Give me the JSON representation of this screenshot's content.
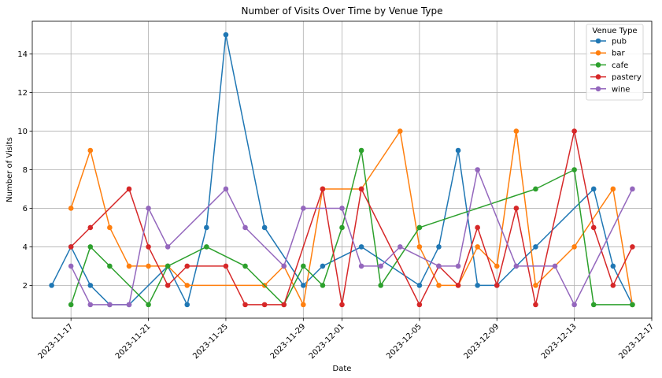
{
  "chart_data": {
    "type": "line",
    "title": "Number of Visits Over Time by Venue Type",
    "xlabel": "Date",
    "ylabel": "Number of Visits",
    "x_axis_type": "date",
    "xlim": [
      "2023-11-15",
      "2023-12-17"
    ],
    "ylim": [
      0.3,
      15.7
    ],
    "x_ticks": [
      "2023-11-17",
      "2023-11-21",
      "2023-11-25",
      "2023-11-29",
      "2023-12-01",
      "2023-12-05",
      "2023-12-09",
      "2023-12-13",
      "2023-12-17"
    ],
    "y_ticks": [
      2,
      4,
      6,
      8,
      10,
      12,
      14
    ],
    "grid": true,
    "legend": {
      "title": "Venue Type",
      "placement": "top-right"
    },
    "series": [
      {
        "name": "pub",
        "color": "#1f77b4",
        "points": [
          [
            "2023-11-16",
            2
          ],
          [
            "2023-11-17",
            4
          ],
          [
            "2023-11-18",
            2
          ],
          [
            "2023-11-19",
            1
          ],
          [
            "2023-11-20",
            1
          ],
          [
            "2023-11-22",
            3
          ],
          [
            "2023-11-23",
            1
          ],
          [
            "2023-11-24",
            5
          ],
          [
            "2023-11-25",
            15
          ],
          [
            "2023-11-27",
            5
          ],
          [
            "2023-11-29",
            2
          ],
          [
            "2023-11-30",
            3
          ],
          [
            "2023-12-02",
            4
          ],
          [
            "2023-12-05",
            2
          ],
          [
            "2023-12-06",
            4
          ],
          [
            "2023-12-07",
            9
          ],
          [
            "2023-12-08",
            2
          ],
          [
            "2023-12-09",
            2
          ],
          [
            "2023-12-11",
            4
          ],
          [
            "2023-12-14",
            7
          ],
          [
            "2023-12-15",
            3
          ],
          [
            "2023-12-16",
            1
          ]
        ]
      },
      {
        "name": "bar",
        "color": "#ff7f0e",
        "points": [
          [
            "2023-11-17",
            6
          ],
          [
            "2023-11-18",
            9
          ],
          [
            "2023-11-19",
            5
          ],
          [
            "2023-11-20",
            3
          ],
          [
            "2023-11-21",
            3
          ],
          [
            "2023-11-22",
            3
          ],
          [
            "2023-11-23",
            2
          ],
          [
            "2023-11-27",
            2
          ],
          [
            "2023-11-28",
            3
          ],
          [
            "2023-11-29",
            1
          ],
          [
            "2023-11-30",
            7
          ],
          [
            "2023-12-02",
            7
          ],
          [
            "2023-12-04",
            10
          ],
          [
            "2023-12-05",
            4
          ],
          [
            "2023-12-06",
            2
          ],
          [
            "2023-12-07",
            2
          ],
          [
            "2023-12-08",
            4
          ],
          [
            "2023-12-09",
            3
          ],
          [
            "2023-12-10",
            10
          ],
          [
            "2023-12-11",
            2
          ],
          [
            "2023-12-13",
            4
          ],
          [
            "2023-12-15",
            7
          ],
          [
            "2023-12-16",
            1
          ]
        ]
      },
      {
        "name": "cafe",
        "color": "#2ca02c",
        "points": [
          [
            "2023-11-17",
            1
          ],
          [
            "2023-11-18",
            4
          ],
          [
            "2023-11-19",
            3
          ],
          [
            "2023-11-21",
            1
          ],
          [
            "2023-11-22",
            3
          ],
          [
            "2023-11-24",
            4
          ],
          [
            "2023-11-26",
            3
          ],
          [
            "2023-11-28",
            1
          ],
          [
            "2023-11-29",
            3
          ],
          [
            "2023-11-30",
            2
          ],
          [
            "2023-12-01",
            5
          ],
          [
            "2023-12-02",
            9
          ],
          [
            "2023-12-03",
            2
          ],
          [
            "2023-12-05",
            5
          ],
          [
            "2023-12-11",
            7
          ],
          [
            "2023-12-13",
            8
          ],
          [
            "2023-12-14",
            1
          ],
          [
            "2023-12-16",
            1
          ]
        ]
      },
      {
        "name": "pastery",
        "color": "#d62728",
        "points": [
          [
            "2023-11-17",
            4
          ],
          [
            "2023-11-18",
            5
          ],
          [
            "2023-11-20",
            7
          ],
          [
            "2023-11-21",
            4
          ],
          [
            "2023-11-22",
            2
          ],
          [
            "2023-11-23",
            3
          ],
          [
            "2023-11-25",
            3
          ],
          [
            "2023-11-26",
            1
          ],
          [
            "2023-11-27",
            1
          ],
          [
            "2023-11-28",
            1
          ],
          [
            "2023-11-30",
            7
          ],
          [
            "2023-12-01",
            1
          ],
          [
            "2023-12-02",
            7
          ],
          [
            "2023-12-05",
            1
          ],
          [
            "2023-12-06",
            3
          ],
          [
            "2023-12-07",
            2
          ],
          [
            "2023-12-08",
            5
          ],
          [
            "2023-12-09",
            2
          ],
          [
            "2023-12-10",
            6
          ],
          [
            "2023-12-11",
            1
          ],
          [
            "2023-12-13",
            10
          ],
          [
            "2023-12-14",
            5
          ],
          [
            "2023-12-15",
            2
          ],
          [
            "2023-12-16",
            4
          ]
        ]
      },
      {
        "name": "wine",
        "color": "#9467bd",
        "points": [
          [
            "2023-11-17",
            3
          ],
          [
            "2023-11-18",
            1
          ],
          [
            "2023-11-19",
            1
          ],
          [
            "2023-11-20",
            1
          ],
          [
            "2023-11-21",
            6
          ],
          [
            "2023-11-22",
            4
          ],
          [
            "2023-11-25",
            7
          ],
          [
            "2023-11-26",
            5
          ],
          [
            "2023-11-28",
            3
          ],
          [
            "2023-11-29",
            6
          ],
          [
            "2023-12-01",
            6
          ],
          [
            "2023-12-02",
            3
          ],
          [
            "2023-12-03",
            3
          ],
          [
            "2023-12-04",
            4
          ],
          [
            "2023-12-06",
            3
          ],
          [
            "2023-12-07",
            3
          ],
          [
            "2023-12-08",
            8
          ],
          [
            "2023-12-10",
            3
          ],
          [
            "2023-12-12",
            3
          ],
          [
            "2023-12-13",
            1
          ],
          [
            "2023-12-16",
            7
          ]
        ]
      }
    ]
  }
}
